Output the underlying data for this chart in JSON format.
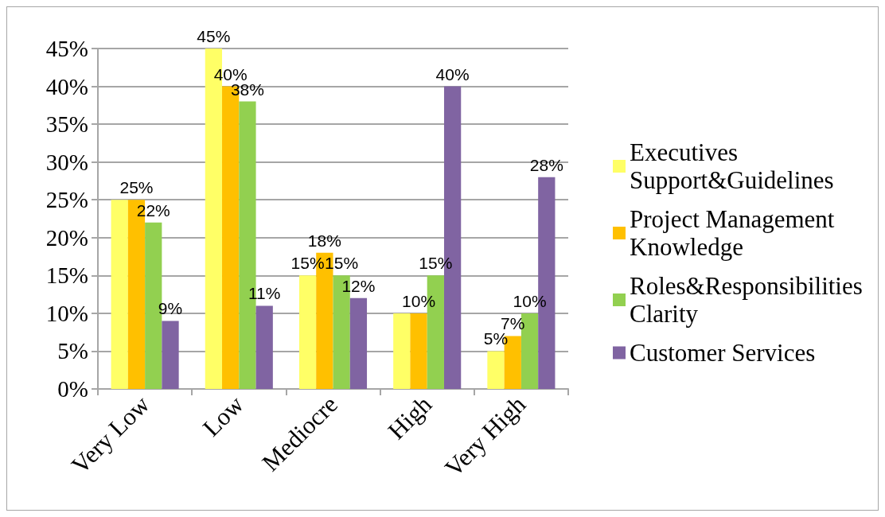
{
  "chart_data": {
    "type": "bar",
    "categories": [
      "Very Low",
      "Low",
      "Mediocre",
      "High",
      "Very High"
    ],
    "series": [
      {
        "name": "Executives Support&Guidelines",
        "color": "#ffff66",
        "values": [
          25,
          45,
          15,
          10,
          5
        ],
        "value_labels": [
          null,
          "45%",
          "15%",
          null,
          "5%"
        ]
      },
      {
        "name": "Project Management Knowledge",
        "color": "#ffc000",
        "values": [
          25,
          40,
          18,
          10,
          7
        ],
        "value_labels": [
          "25%",
          "40%",
          "18%",
          "10%",
          "7%"
        ]
      },
      {
        "name": "Roles&Responsibilities Clarity",
        "color": "#92d050",
        "values": [
          22,
          38,
          15,
          15,
          10
        ],
        "value_labels": [
          "22%",
          "38%",
          "15%",
          "15%",
          "10%"
        ]
      },
      {
        "name": "Customer Services",
        "color": "#8064a2",
        "values": [
          9,
          11,
          12,
          40,
          28
        ],
        "value_labels": [
          "9%",
          "11%",
          "12%",
          "40%",
          "28%"
        ]
      }
    ],
    "ylim": [
      0,
      45
    ],
    "yticks": [
      {
        "value": 0,
        "label": "0%"
      },
      {
        "value": 5,
        "label": "5%"
      },
      {
        "value": 10,
        "label": "10%"
      },
      {
        "value": 15,
        "label": "15%"
      },
      {
        "value": 20,
        "label": "20%"
      },
      {
        "value": 25,
        "label": "25%"
      },
      {
        "value": 30,
        "label": "30%"
      },
      {
        "value": 35,
        "label": "35%"
      },
      {
        "value": 40,
        "label": "40%"
      },
      {
        "value": 45,
        "label": "45%"
      }
    ],
    "grid": "y",
    "legend": "right"
  }
}
